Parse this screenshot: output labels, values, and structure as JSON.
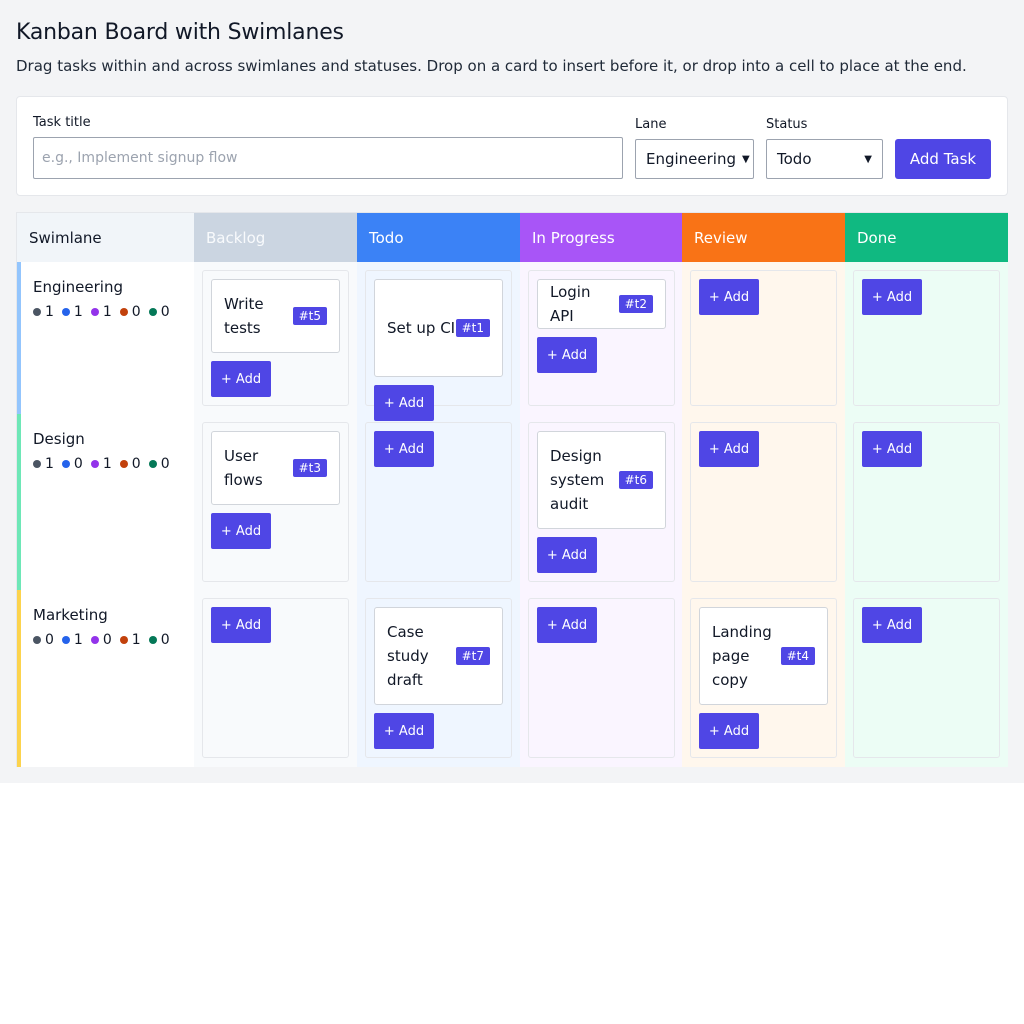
{
  "header": {
    "title": "Kanban Board with Swimlanes",
    "subtitle": "Drag tasks within and across swimlanes and statuses. Drop on a card to insert before it, or drop into a cell to place at the end."
  },
  "form": {
    "task_title_label": "Task title",
    "task_title_placeholder": "e.g., Implement signup flow",
    "task_title_value": "",
    "lane_label": "Lane",
    "lane_selected": "Engineering",
    "status_label": "Status",
    "status_selected": "Todo",
    "add_button": "Add Task"
  },
  "board": {
    "swimlane_header": "Swimlane",
    "add_label": "+ Add",
    "statuses": [
      {
        "label": "Backlog",
        "color": "#cbd5e1",
        "text_color": "#f8fafc",
        "cell_bg": "#f8fafc"
      },
      {
        "label": "Todo",
        "color": "#3b82f6",
        "text_color": "#ffffff",
        "cell_bg": "#eff6ff"
      },
      {
        "label": "In Progress",
        "color": "#a855f7",
        "text_color": "#ffffff",
        "cell_bg": "#faf5ff"
      },
      {
        "label": "Review",
        "color": "#f97316",
        "text_color": "#ffffff",
        "cell_bg": "#fff7ed"
      },
      {
        "label": "Done",
        "color": "#10b981",
        "text_color": "#ffffff",
        "cell_bg": "#ecfdf5"
      }
    ],
    "count_dot_colors": [
      "#4b5563",
      "#2563eb",
      "#9333ea",
      "#c2410c",
      "#047857"
    ],
    "lanes": [
      {
        "name": "Engineering",
        "color": "#93c5fd",
        "counts": [
          "1",
          "1",
          "1",
          "0",
          "0"
        ],
        "cells": [
          [
            {
              "title": "Write tests",
              "id": "#t5"
            }
          ],
          [
            {
              "title": "Set up CI",
              "id": "#t1"
            }
          ],
          [
            {
              "title": "Login API",
              "id": "#t2"
            }
          ],
          [],
          []
        ]
      },
      {
        "name": "Design",
        "color": "#6ee7b7",
        "counts": [
          "1",
          "0",
          "1",
          "0",
          "0"
        ],
        "cells": [
          [
            {
              "title": "User flows",
              "id": "#t3"
            }
          ],
          [],
          [
            {
              "title": "Design system audit",
              "id": "#t6"
            }
          ],
          [],
          []
        ]
      },
      {
        "name": "Marketing",
        "color": "#fcd34d",
        "counts": [
          "0",
          "1",
          "0",
          "1",
          "0"
        ],
        "cells": [
          [],
          [
            {
              "title": "Case study draft",
              "id": "#t7"
            }
          ],
          [],
          [
            {
              "title": "Landing page copy",
              "id": "#t4"
            }
          ],
          []
        ]
      }
    ]
  }
}
